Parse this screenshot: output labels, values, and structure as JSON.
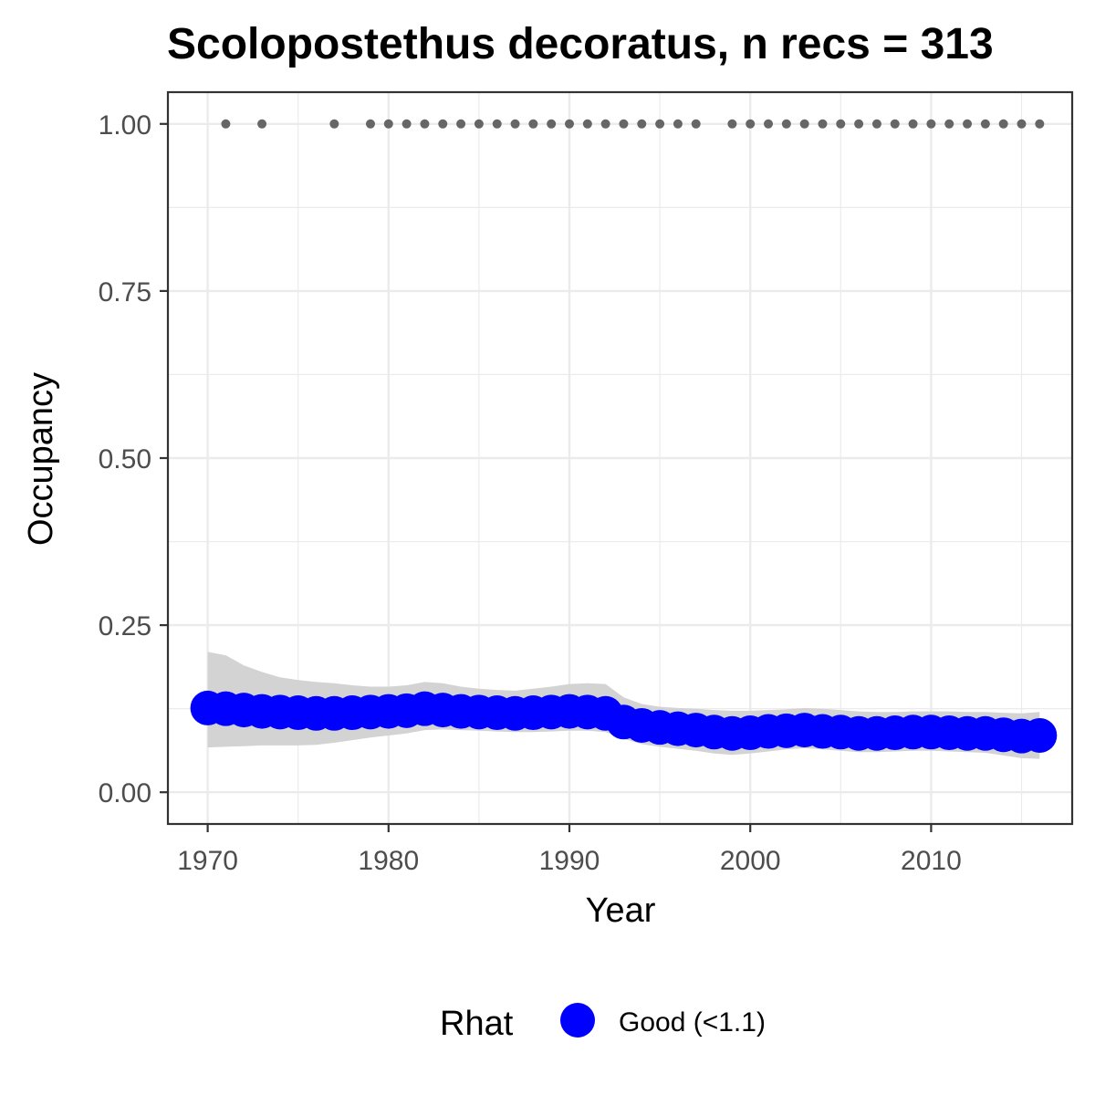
{
  "chart_data": {
    "type": "line",
    "title": "Scolopostethus decoratus, n recs = 313",
    "xlabel": "Year",
    "ylabel": "Occupancy",
    "xlim": [
      1967.8,
      2017.8
    ],
    "ylim": [
      -0.0475,
      1.0475
    ],
    "x_ticks": [
      1970,
      1980,
      1990,
      2000,
      2010
    ],
    "x_tick_labels": [
      "1970",
      "1980",
      "1990",
      "2000",
      "2010"
    ],
    "y_ticks": [
      0,
      0.25,
      0.5,
      0.75,
      1
    ],
    "y_tick_labels": [
      "0.00",
      "0.25",
      "0.50",
      "0.75",
      "1.00"
    ],
    "grid": true,
    "legend": {
      "title": "Rhat",
      "position": "bottom",
      "entries": [
        {
          "label": "Good (<1.1)",
          "color": "#0000ff"
        }
      ]
    },
    "colors": {
      "estimate": "#0000ff",
      "ribbon": "#d3d3d3",
      "records": "#666666",
      "grid": "#ebebeb",
      "panel_border": "#333333"
    },
    "series": [
      {
        "x": [
          1970,
          1971,
          1972,
          1973,
          1974,
          1975,
          1976,
          1977,
          1978,
          1979,
          1980,
          1981,
          1982,
          1983,
          1984,
          1985,
          1986,
          1987,
          1988,
          1989,
          1990,
          1991,
          1992,
          1993,
          1994,
          1995,
          1996,
          1997,
          1998,
          1999,
          2000,
          2001,
          2002,
          2003,
          2004,
          2005,
          2006,
          2007,
          2008,
          2009,
          2010,
          2011,
          2012,
          2013,
          2014,
          2015,
          2016
        ],
        "y": [
          0.126,
          0.125,
          0.123,
          0.121,
          0.12,
          0.119,
          0.118,
          0.118,
          0.119,
          0.12,
          0.121,
          0.122,
          0.125,
          0.123,
          0.121,
          0.12,
          0.119,
          0.118,
          0.119,
          0.12,
          0.121,
          0.12,
          0.118,
          0.105,
          0.1,
          0.097,
          0.095,
          0.093,
          0.09,
          0.088,
          0.089,
          0.091,
          0.092,
          0.093,
          0.091,
          0.09,
          0.088,
          0.088,
          0.089,
          0.09,
          0.09,
          0.089,
          0.088,
          0.088,
          0.086,
          0.084,
          0.085
        ],
        "lower": [
          0.067,
          0.068,
          0.069,
          0.07,
          0.07,
          0.07,
          0.071,
          0.074,
          0.078,
          0.082,
          0.085,
          0.088,
          0.093,
          0.094,
          0.093,
          0.092,
          0.091,
          0.09,
          0.09,
          0.091,
          0.092,
          0.092,
          0.09,
          0.08,
          0.072,
          0.068,
          0.065,
          0.062,
          0.058,
          0.056,
          0.058,
          0.061,
          0.064,
          0.066,
          0.064,
          0.062,
          0.06,
          0.06,
          0.061,
          0.062,
          0.062,
          0.061,
          0.06,
          0.059,
          0.055,
          0.051,
          0.05
        ],
        "upper": [
          0.21,
          0.205,
          0.19,
          0.18,
          0.172,
          0.168,
          0.165,
          0.163,
          0.16,
          0.158,
          0.158,
          0.16,
          0.165,
          0.163,
          0.158,
          0.155,
          0.153,
          0.152,
          0.155,
          0.158,
          0.162,
          0.163,
          0.162,
          0.142,
          0.132,
          0.128,
          0.126,
          0.125,
          0.123,
          0.122,
          0.122,
          0.123,
          0.124,
          0.126,
          0.125,
          0.123,
          0.121,
          0.12,
          0.12,
          0.121,
          0.121,
          0.121,
          0.12,
          0.12,
          0.119,
          0.118,
          0.12
        ]
      }
    ],
    "records": {
      "x": [
        1971,
        1973,
        1977,
        1979,
        1980,
        1981,
        1982,
        1983,
        1984,
        1985,
        1986,
        1987,
        1988,
        1989,
        1990,
        1991,
        1992,
        1993,
        1994,
        1995,
        1996,
        1997,
        1999,
        2000,
        2001,
        2002,
        2003,
        2004,
        2005,
        2006,
        2007,
        2008,
        2009,
        2010,
        2011,
        2012,
        2013,
        2014,
        2015,
        2016
      ],
      "y": 1.0
    }
  }
}
